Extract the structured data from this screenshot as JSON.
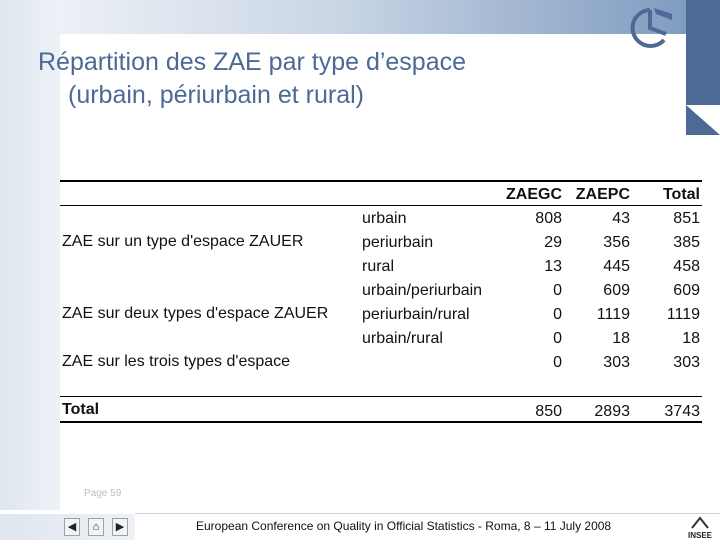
{
  "slide": {
    "title_line1": "Répartition des ZAE par type d’espace",
    "title_line2": "(urbain, périurbain et rural)",
    "page_label": "Page 59",
    "footer_text": "European Conference on Quality in Official Statistics - Roma, 8 – 11 July 2008",
    "insee_label": "INSEE"
  },
  "navigation": {
    "prev_glyph": "◀",
    "home_glyph": "⌂",
    "next_glyph": "▶"
  },
  "table": {
    "headers": {
      "zaegc": "ZAEGC",
      "zaepc": "ZAEPC",
      "total": "Total"
    },
    "groups": [
      "ZAE sur un type d'espace ZAUER",
      "ZAE sur deux types d'espace ZAUER",
      "ZAE sur les trois types d'espace"
    ],
    "rows": [
      {
        "type": "urbain",
        "zaegc": "808",
        "zaepc": "43",
        "total": "851"
      },
      {
        "type": "periurbain",
        "zaegc": "29",
        "zaepc": "356",
        "total": "385"
      },
      {
        "type": "rural",
        "zaegc": "13",
        "zaepc": "445",
        "total": "458"
      },
      {
        "type": "urbain/periurbain",
        "zaegc": "0",
        "zaepc": "609",
        "total": "609"
      },
      {
        "type": "periurbain/rural",
        "zaegc": "0",
        "zaepc": "1119",
        "total": "1119"
      },
      {
        "type": "urbain/rural",
        "zaegc": "0",
        "zaepc": "18",
        "total": "18"
      },
      {
        "type": "",
        "zaegc": "0",
        "zaepc": "303",
        "total": "303"
      }
    ],
    "total": {
      "label": "Total",
      "zaegc": "850",
      "zaepc": "2893",
      "total": "3743"
    }
  },
  "colors": {
    "title": "#4c6a95",
    "band_dark": "#4c6a95",
    "band_light": "#dfe6ef"
  }
}
